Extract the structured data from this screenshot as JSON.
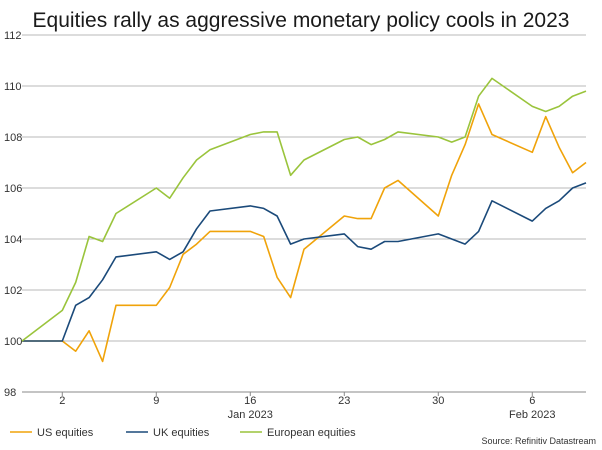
{
  "chart_data": {
    "type": "line",
    "title": "Equities rally as aggressive monetary policy cools in 2023",
    "source": "Source: Refinitiv Datastream",
    "ylim": [
      98,
      112
    ],
    "yticks": [
      98,
      100,
      102,
      104,
      106,
      108,
      110,
      112
    ],
    "grid": true,
    "legend_position": "bottom-left",
    "x_tick_labels": [
      "2",
      "9",
      "16",
      "23",
      "30",
      "6"
    ],
    "x_month_labels": [
      "Jan 2023",
      "Feb 2023"
    ],
    "x": [
      "2022-12-30",
      "2023-01-02",
      "2023-01-03",
      "2023-01-04",
      "2023-01-05",
      "2023-01-06",
      "2023-01-09",
      "2023-01-10",
      "2023-01-11",
      "2023-01-12",
      "2023-01-13",
      "2023-01-16",
      "2023-01-17",
      "2023-01-18",
      "2023-01-19",
      "2023-01-20",
      "2023-01-23",
      "2023-01-24",
      "2023-01-25",
      "2023-01-26",
      "2023-01-27",
      "2023-01-30",
      "2023-01-31",
      "2023-02-01",
      "2023-02-02",
      "2023-02-03",
      "2023-02-06",
      "2023-02-07",
      "2023-02-08",
      "2023-02-09",
      "2023-02-10"
    ],
    "series": [
      {
        "name": "US equities",
        "color": "#f0a30a",
        "values": [
          100.0,
          100.0,
          99.6,
          100.4,
          99.2,
          101.4,
          101.4,
          102.1,
          103.4,
          103.8,
          104.3,
          104.3,
          104.1,
          102.5,
          101.7,
          103.6,
          104.9,
          104.8,
          104.8,
          106.0,
          106.3,
          104.9,
          106.5,
          107.7,
          109.3,
          108.1,
          107.4,
          108.8,
          107.6,
          106.6,
          107.0
        ]
      },
      {
        "name": "UK equities",
        "color": "#1b4a7a",
        "values": [
          100.0,
          100.0,
          101.4,
          101.7,
          102.4,
          103.3,
          103.5,
          103.2,
          103.5,
          104.4,
          105.1,
          105.3,
          105.2,
          104.9,
          103.8,
          104.0,
          104.2,
          103.7,
          103.6,
          103.9,
          103.9,
          104.2,
          104.0,
          103.8,
          104.3,
          105.5,
          104.7,
          105.2,
          105.5,
          106.0,
          106.2
        ]
      },
      {
        "name": "European equities",
        "color": "#9ac43c",
        "values": [
          100.0,
          101.2,
          102.3,
          104.1,
          103.9,
          105.0,
          106.0,
          105.6,
          106.4,
          107.1,
          107.5,
          108.1,
          108.2,
          108.2,
          106.5,
          107.1,
          107.9,
          108.0,
          107.7,
          107.9,
          108.2,
          108.0,
          107.8,
          108.0,
          109.6,
          110.3,
          109.2,
          109.0,
          109.2,
          109.6,
          109.8
        ]
      }
    ]
  }
}
